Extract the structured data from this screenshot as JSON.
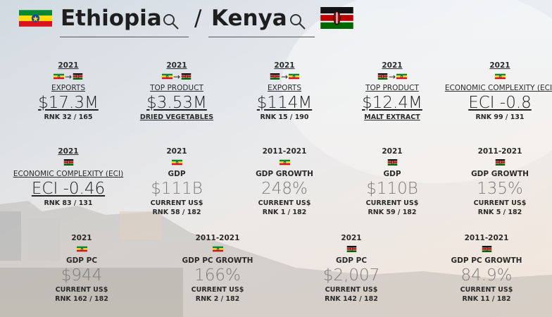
{
  "header": {
    "country_1": "Ethiopia",
    "separator": "/",
    "country_2": "Kenya"
  },
  "cards": [
    {
      "year": "2021",
      "arrow": "→",
      "label": "EXPORTS",
      "value": "$17.3M",
      "rank": "RNK 32 / 165"
    },
    {
      "year": "2021",
      "arrow": "→",
      "label": "TOP PRODUCT",
      "value": "$3.53M",
      "product": "DRIED VEGETABLES"
    },
    {
      "year": "2021",
      "arrow": "→",
      "label": "EXPORTS",
      "value": "$114M",
      "rank": "RNK 15 / 190"
    },
    {
      "year": "2021",
      "arrow": "→",
      "label": "TOP PRODUCT",
      "value": "$12.4M",
      "product": "MALT EXTRACT"
    },
    {
      "year": "2021",
      "label": "ECONOMIC COMPLEXITY (ECI)",
      "value": "ECI -0.8",
      "rank": "RNK 99 / 131"
    },
    {
      "year": "2021",
      "label": "ECONOMIC COMPLEXITY (ECI)",
      "value": "ECI -0.46",
      "rank": "RNK 83 / 131"
    },
    {
      "year": "2021",
      "label": "GDP",
      "value": "$111B",
      "unit": "CURRENT US$",
      "rank": "RNK 58 / 182"
    },
    {
      "year": "2011-2021",
      "label": "GDP GROWTH",
      "value": "248%",
      "unit": "CURRENT US$",
      "rank": "RNK 1 / 182"
    },
    {
      "year": "2021",
      "label": "GDP",
      "value": "$110B",
      "unit": "CURRENT US$",
      "rank": "RNK 59 / 182"
    },
    {
      "year": "2011-2021",
      "label": "GDP GROWTH",
      "value": "135%",
      "unit": "CURRENT US$",
      "rank": "RNK 5 / 182"
    },
    {
      "year": "2021",
      "label": "GDP PC",
      "value": "$944",
      "unit": "CURRENT US$",
      "rank": "RNK 162 / 182"
    },
    {
      "year": "2011-2021",
      "label": "GDP PC GROWTH",
      "value": "166%",
      "unit": "CURRENT US$",
      "rank": "RNK 2 / 182"
    },
    {
      "year": "2021",
      "label": "GDP PC",
      "value": "$2,007",
      "unit": "CURRENT US$",
      "rank": "RNK 142 / 182"
    },
    {
      "year": "2011-2021",
      "label": "GDP PC GROWTH",
      "value": "84.9%",
      "unit": "CURRENT US$",
      "rank": "RNK 11 / 182"
    }
  ]
}
